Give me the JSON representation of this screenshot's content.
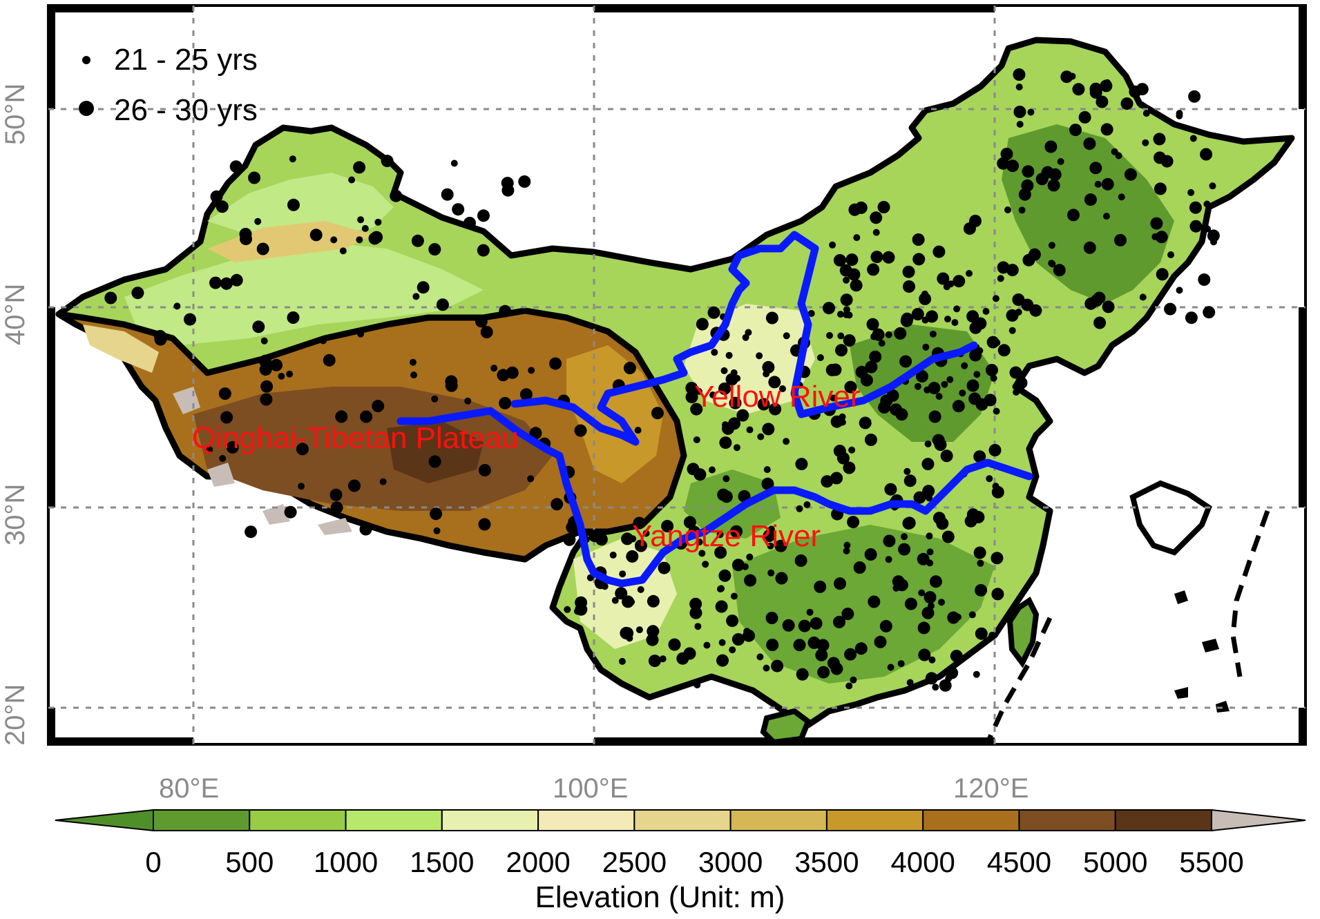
{
  "map": {
    "latitude_labels": [
      "50°N",
      "40°N",
      "30°N",
      "20°N"
    ],
    "longitude_labels": [
      "80°E",
      "100°E",
      "120°E"
    ],
    "region_labels": {
      "yellow_river": "Yellow River",
      "yangtze_river": "Yangtze River",
      "plateau": "Qinghai-Tibetan Plateau"
    },
    "colors": {
      "river": "#0a1aff",
      "label": "#ff1010",
      "boundary": "#000000"
    }
  },
  "legend": {
    "items": [
      {
        "label": "21 - 25 yrs",
        "marker": "small-dot"
      },
      {
        "label": "26 - 30 yrs",
        "marker": "large-dot"
      }
    ]
  },
  "colorbar": {
    "title": "Elevation (Unit: m)",
    "ticks": [
      "0",
      "500",
      "1000",
      "1500",
      "2000",
      "2500",
      "3000",
      "3500",
      "4000",
      "4500",
      "5000",
      "5500"
    ],
    "colors": [
      "#4f8f2a",
      "#5f9a2e",
      "#98cc45",
      "#b8e86a",
      "#e8f0b0",
      "#f3eab8",
      "#e6d58c",
      "#d5b855",
      "#c9982a",
      "#a8701c",
      "#7d4e22",
      "#5a3518",
      "#c8bdb6"
    ]
  }
}
